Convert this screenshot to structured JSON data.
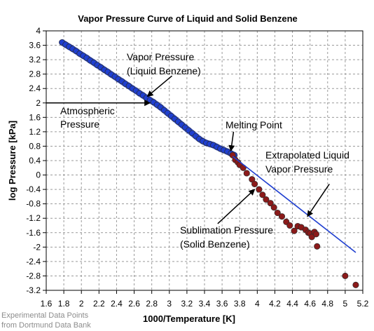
{
  "chart_data": {
    "type": "scatter",
    "title": "Vapor Pressure Curve of Liquid and Solid Benzene",
    "xlabel": "1000/Temperature [K]",
    "ylabel": "log Pressure [kPa]",
    "xlim": [
      1.6,
      5.2
    ],
    "ylim": [
      -3.2,
      4
    ],
    "x_ticks": [
      "1.6",
      "1.8",
      "2",
      "2.2",
      "2.4",
      "2.6",
      "2.8",
      "3",
      "3.2",
      "3.4",
      "3.6",
      "3.8",
      "4",
      "4.2",
      "4.4",
      "4.6",
      "4.8",
      "5",
      "5.2"
    ],
    "y_ticks": [
      "4",
      "3.6",
      "3.2",
      "2.8",
      "2.4",
      "2",
      "1.6",
      "1.2",
      "0.8",
      "0.4",
      "0",
      "-0.4",
      "-0.8",
      "-1.2",
      "-1.6",
      "-2",
      "-2.4",
      "-2.8",
      "-3.2"
    ],
    "grid": true,
    "colors": {
      "liquid_points": "#1f3fd0",
      "solid_points": "#8b1a1a",
      "extrapolation_line": "#1f3fd0",
      "annotation_arrow": "#000000"
    },
    "series": [
      {
        "marker": "point",
        "x": [
          1.78,
          1.82,
          1.86,
          1.9,
          1.94,
          1.98,
          2.02,
          2.06,
          2.1,
          2.14,
          2.18,
          2.22,
          2.26,
          2.3,
          2.34,
          2.38,
          2.42,
          2.46,
          2.5,
          2.54,
          2.58,
          2.62,
          2.66,
          2.7,
          2.74,
          2.78,
          2.82,
          2.86,
          2.9,
          2.94,
          2.98,
          3.02,
          3.06,
          3.1,
          3.14,
          3.18,
          3.22,
          3.26,
          3.3,
          3.34,
          3.38,
          3.42,
          3.46,
          3.5,
          3.54,
          3.58,
          3.62,
          3.66,
          3.7,
          3.74
        ],
        "y": [
          3.68,
          3.62,
          3.56,
          3.5,
          3.44,
          3.37,
          3.31,
          3.25,
          3.18,
          3.12,
          3.05,
          2.99,
          2.92,
          2.86,
          2.79,
          2.73,
          2.66,
          2.6,
          2.53,
          2.47,
          2.4,
          2.34,
          2.27,
          2.21,
          2.14,
          2.08,
          2.02,
          1.95,
          1.88,
          1.8,
          1.72,
          1.64,
          1.56,
          1.48,
          1.4,
          1.32,
          1.24,
          1.16,
          1.08,
          1.0,
          0.94,
          0.89,
          0.86,
          0.83,
          0.78,
          0.73,
          0.69,
          0.65,
          0.6,
          0.55
        ]
      },
      {
        "marker": "point",
        "x": [
          3.72,
          3.75,
          3.78,
          3.8,
          3.84,
          3.88,
          3.94,
          3.97,
          4.02,
          4.06,
          4.1,
          4.15,
          4.19,
          4.23,
          4.28,
          4.33,
          4.37,
          4.42,
          4.46,
          4.5,
          4.55,
          4.58,
          4.6,
          4.62,
          4.65,
          4.67,
          4.68,
          5.0,
          5.12
        ],
        "y": [
          0.55,
          0.42,
          0.35,
          0.28,
          0.2,
          0.05,
          -0.12,
          -0.25,
          -0.4,
          -0.55,
          -0.68,
          -0.78,
          -0.9,
          -1.05,
          -1.15,
          -1.3,
          -1.4,
          -1.55,
          -1.42,
          -1.45,
          -1.52,
          -1.6,
          -1.62,
          -1.72,
          -1.58,
          -1.64,
          -1.98,
          -2.8,
          -3.05
        ]
      }
    ],
    "lines": [
      {
        "x": [
          3.72,
          5.12
        ],
        "y": [
          0.52,
          -2.15
        ]
      }
    ],
    "annotations": [
      {
        "text_lines": [
          "Vapor Pressure",
          "(Liquid Benzene)"
        ],
        "arrow": {
          "from": [
            3.03,
            2.75
          ],
          "to": [
            2.75,
            2.18
          ]
        }
      },
      {
        "text_lines": [
          "Atmospheric",
          "Pressure"
        ],
        "arrow": {
          "from": [
            1.6,
            2.0
          ],
          "to": [
            2.78,
            2.0
          ]
        }
      },
      {
        "text_lines": [
          "Melting Point"
        ],
        "arrow": {
          "from": [
            3.73,
            1.2
          ],
          "to": [
            3.7,
            0.67
          ]
        }
      },
      {
        "text_lines": [
          "Extrapolated Liquid",
          "Vapor Pressure"
        ],
        "arrow": {
          "from": [
            4.82,
            -0.25
          ],
          "to": [
            4.57,
            -1.15
          ]
        }
      },
      {
        "text_lines": [
          "Sublimation Pressure",
          "(Solid Benzene)"
        ],
        "arrow": {
          "from": [
            3.55,
            -1.35
          ],
          "to": [
            3.97,
            -0.4
          ]
        }
      }
    ],
    "credit_lines": [
      "Experimental Data Points",
      "from Dortmund Data Bank"
    ]
  }
}
